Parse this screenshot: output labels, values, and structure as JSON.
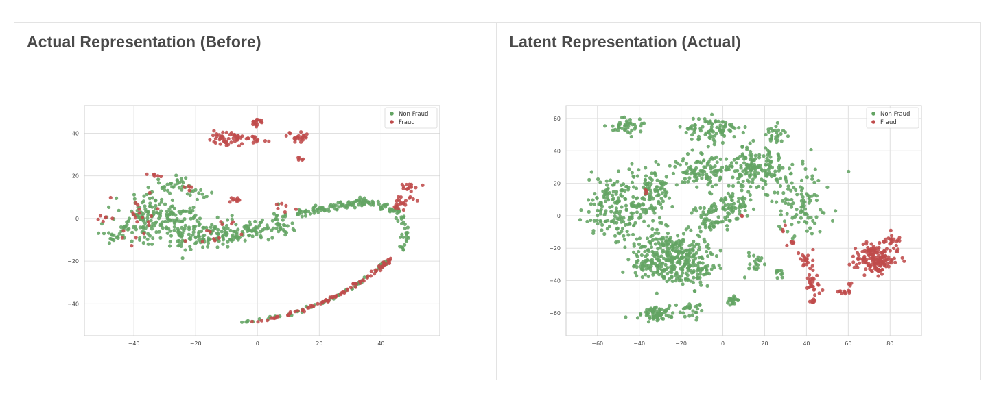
{
  "panels": [
    {
      "title": "Actual Representation (Before)"
    },
    {
      "title": "Latent Representation (Actual)"
    }
  ],
  "colors": {
    "non_fraud": "#63a463",
    "fraud": "#bf4b4b",
    "grid": "#e0e0e0",
    "frame": "#cccccc"
  },
  "chart_data": [
    {
      "type": "scatter",
      "title": "",
      "xlabel": "",
      "ylabel": "",
      "xlim": [
        -56,
        59
      ],
      "ylim": [
        -55,
        53
      ],
      "xticks": [
        -40,
        -20,
        0,
        20,
        40
      ],
      "yticks": [
        40,
        20,
        0,
        -20,
        -40
      ],
      "grid": true,
      "legend_position": "top-right",
      "series": [
        {
          "name": "Non Fraud",
          "clusters": [
            {
              "cx": -35,
              "cy": 0,
              "rx": 12,
              "ry": 11,
              "n": 160
            },
            {
              "cx": -24,
              "cy": -6,
              "rx": 9,
              "ry": 9,
              "n": 90
            },
            {
              "cx": -12,
              "cy": -7,
              "rx": 8,
              "ry": 5,
              "n": 70
            },
            {
              "cx": -1,
              "cy": -5,
              "rx": 6,
              "ry": 4,
              "n": 45
            },
            {
              "cx": 7,
              "cy": -3,
              "rx": 4,
              "ry": 6,
              "n": 35
            },
            {
              "cx": -27,
              "cy": 16,
              "rx": 6,
              "ry": 3,
              "n": 25
            },
            {
              "cx": -19,
              "cy": 12,
              "rx": 4,
              "ry": 3,
              "n": 12
            },
            {
              "cx": -47,
              "cy": -9,
              "rx": 4,
              "ry": 4,
              "n": 15
            }
          ],
          "paths": [
            {
              "pts": [
                [
                  12,
                  2
                ],
                [
                  20,
                  4
                ],
                [
                  27,
                  6
                ],
                [
                  34,
                  8
                ],
                [
                  40,
                  6
                ],
                [
                  45,
                  4
                ]
              ],
              "n": 120,
              "spread": 1.8
            },
            {
              "pts": [
                [
                  45,
                  4
                ],
                [
                  48,
                  -5
                ],
                [
                  47,
                  -15
                ]
              ],
              "n": 35,
              "spread": 1.5
            },
            {
              "pts": [
                [
                  -5,
                  -49
                ],
                [
                  10,
                  -45
                ],
                [
                  20,
                  -40
                ],
                [
                  30,
                  -33
                ],
                [
                  38,
                  -25
                ],
                [
                  42,
                  -20
                ]
              ],
              "n": 70,
              "spread": 0.8
            }
          ]
        },
        {
          "name": "Fraud",
          "clusters": [
            {
              "cx": -10,
              "cy": 37,
              "rx": 5,
              "ry": 4,
              "n": 45
            },
            {
              "cx": -1,
              "cy": 37,
              "rx": 5,
              "ry": 2,
              "n": 18
            },
            {
              "cx": 0,
              "cy": 45,
              "rx": 2,
              "ry": 2,
              "n": 18
            },
            {
              "cx": 13,
              "cy": 38,
              "rx": 5,
              "ry": 2,
              "n": 22
            },
            {
              "cx": 14,
              "cy": 28,
              "rx": 1,
              "ry": 1,
              "n": 5
            },
            {
              "cx": -7,
              "cy": 8,
              "rx": 2,
              "ry": 2,
              "n": 10
            },
            {
              "cx": 50,
              "cy": 15,
              "rx": 3,
              "ry": 2,
              "n": 14
            },
            {
              "cx": 48,
              "cy": 9,
              "rx": 3,
              "ry": 2,
              "n": 12
            },
            {
              "cx": 46,
              "cy": 6,
              "rx": 2,
              "ry": 2,
              "n": 10
            },
            {
              "cx": -32,
              "cy": 20,
              "rx": 3,
              "ry": 1,
              "n": 6
            },
            {
              "cx": -22,
              "cy": 15,
              "rx": 2,
              "ry": 4,
              "n": 5
            },
            {
              "cx": -50,
              "cy": -1,
              "rx": 2,
              "ry": 2,
              "n": 6
            },
            {
              "cx": -38,
              "cy": 3,
              "rx": 8,
              "ry": 12,
              "n": 20
            },
            {
              "cx": -10,
              "cy": -6,
              "rx": 10,
              "ry": 6,
              "n": 12
            },
            {
              "cx": 8,
              "cy": 4,
              "rx": 4,
              "ry": 3,
              "n": 6
            }
          ],
          "paths": [
            {
              "pts": [
                [
                  -3,
                  -49
                ],
                [
                  8,
                  -46
                ],
                [
                  18,
                  -41
                ],
                [
                  26,
                  -36
                ],
                [
                  33,
                  -30
                ],
                [
                  39,
                  -24
                ],
                [
                  43,
                  -19
                ]
              ],
              "n": 85,
              "spread": 0.9
            }
          ]
        }
      ]
    },
    {
      "type": "scatter",
      "title": "",
      "xlabel": "",
      "ylabel": "",
      "xlim": [
        -75,
        95
      ],
      "ylim": [
        -74,
        68
      ],
      "xticks": [
        -60,
        -40,
        -20,
        0,
        20,
        40,
        60,
        80
      ],
      "yticks": [
        60,
        40,
        20,
        0,
        -20,
        -40,
        -60
      ],
      "grid": true,
      "legend_position": "top-right",
      "series": [
        {
          "name": "Non Fraud",
          "clusters": [
            {
              "cx": -47,
              "cy": 55,
              "rx": 7,
              "ry": 4,
              "n": 40
            },
            {
              "cx": -5,
              "cy": 53,
              "rx": 12,
              "ry": 7,
              "n": 85
            },
            {
              "cx": 25,
              "cy": 50,
              "rx": 5,
              "ry": 4,
              "n": 25
            },
            {
              "cx": 15,
              "cy": 30,
              "rx": 15,
              "ry": 11,
              "n": 160
            },
            {
              "cx": -10,
              "cy": 28,
              "rx": 12,
              "ry": 9,
              "n": 100
            },
            {
              "cx": 38,
              "cy": 10,
              "rx": 12,
              "ry": 20,
              "n": 100
            },
            {
              "cx": -52,
              "cy": 5,
              "rx": 12,
              "ry": 17,
              "n": 160
            },
            {
              "cx": -35,
              "cy": 15,
              "rx": 10,
              "ry": 14,
              "n": 120
            },
            {
              "cx": -30,
              "cy": -25,
              "rx": 13,
              "ry": 15,
              "n": 220
            },
            {
              "cx": -15,
              "cy": -30,
              "rx": 10,
              "ry": 15,
              "n": 160
            },
            {
              "cx": -5,
              "cy": 0,
              "rx": 8,
              "ry": 10,
              "n": 70
            },
            {
              "cx": 5,
              "cy": 8,
              "rx": 8,
              "ry": 10,
              "n": 60
            },
            {
              "cx": 15,
              "cy": -30,
              "rx": 4,
              "ry": 6,
              "n": 20
            },
            {
              "cx": 27,
              "cy": -35,
              "rx": 3,
              "ry": 3,
              "n": 10
            },
            {
              "cx": 5,
              "cy": -52,
              "rx": 3,
              "ry": 3,
              "n": 20
            },
            {
              "cx": -32,
              "cy": -60,
              "rx": 9,
              "ry": 5,
              "n": 70
            },
            {
              "cx": -16,
              "cy": -58,
              "rx": 5,
              "ry": 5,
              "n": 25
            }
          ],
          "paths": []
        },
        {
          "name": "Fraud",
          "clusters": [
            {
              "cx": 73,
              "cy": -26,
              "rx": 9,
              "ry": 9,
              "n": 160
            },
            {
              "cx": 80,
              "cy": -15,
              "rx": 4,
              "ry": 3,
              "n": 20
            },
            {
              "cx": 40,
              "cy": -28,
              "rx": 3,
              "ry": 5,
              "n": 22
            },
            {
              "cx": 43,
              "cy": -44,
              "rx": 3,
              "ry": 6,
              "n": 26
            },
            {
              "cx": 43,
              "cy": -53,
              "rx": 2,
              "ry": 2,
              "n": 8
            },
            {
              "cx": 33,
              "cy": -17,
              "rx": 2,
              "ry": 2,
              "n": 6
            },
            {
              "cx": 58,
              "cy": -47,
              "rx": 3,
              "ry": 1,
              "n": 10
            },
            {
              "cx": 61,
              "cy": -42,
              "rx": 1,
              "ry": 1,
              "n": 3
            },
            {
              "cx": -37,
              "cy": 15,
              "rx": 1,
              "ry": 4,
              "n": 4
            },
            {
              "cx": 9,
              "cy": 0,
              "rx": 1,
              "ry": 1,
              "n": 2
            },
            {
              "cx": 28,
              "cy": -8,
              "rx": 3,
              "ry": 3,
              "n": 3
            }
          ],
          "paths": []
        }
      ]
    }
  ]
}
